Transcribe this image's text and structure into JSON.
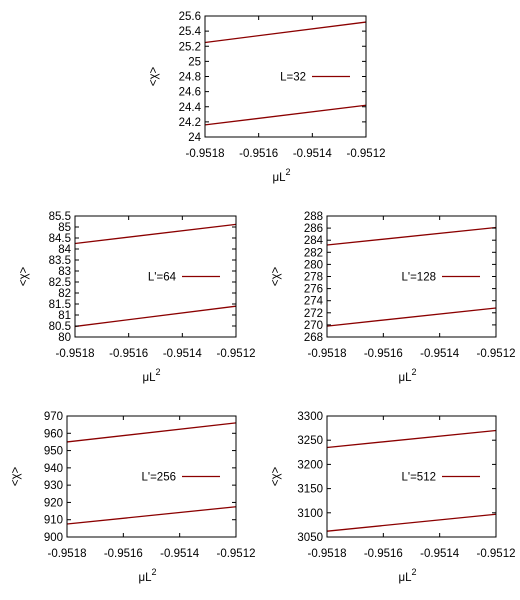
{
  "chart_data": [
    {
      "type": "line",
      "ylabel": "<χ>",
      "xlabel": "μL",
      "xlabel_sup": "2",
      "xlim": [
        -0.9518,
        -0.9512
      ],
      "xticks": [
        "-0.9518",
        "-0.9516",
        "-0.9514",
        "-0.9512"
      ],
      "ylim": [
        24,
        25.6
      ],
      "yticks": [
        "24",
        "24.2",
        "24.4",
        "24.6",
        "24.8",
        "25",
        "25.2",
        "25.4",
        "25.6"
      ],
      "legend": "L=32",
      "legend_position": "right",
      "line_color": "#8b0000",
      "series": [
        {
          "x": [
            -0.9518,
            -0.9512
          ],
          "y": [
            24.16,
            24.42
          ]
        },
        {
          "x": [
            -0.9518,
            -0.9512
          ],
          "y": [
            25.25,
            25.52
          ]
        }
      ]
    },
    {
      "type": "line",
      "ylabel": "<χ>",
      "xlabel": "μL",
      "xlabel_sup": "2",
      "xlim": [
        -0.9518,
        -0.9512
      ],
      "xticks": [
        "-0.9518",
        "-0.9516",
        "-0.9514",
        "-0.9512"
      ],
      "ylim": [
        80,
        85.5
      ],
      "yticks": [
        "80",
        "80.5",
        "81",
        "81.5",
        "82",
        "82.5",
        "83",
        "83.5",
        "84",
        "84.5",
        "85",
        "85.5"
      ],
      "legend": "L'=64",
      "legend_position": "right",
      "line_color": "#8b0000",
      "series": [
        {
          "x": [
            -0.9518,
            -0.9512
          ],
          "y": [
            80.48,
            81.4
          ]
        },
        {
          "x": [
            -0.9518,
            -0.9512
          ],
          "y": [
            84.25,
            85.12
          ]
        }
      ]
    },
    {
      "type": "line",
      "ylabel": "<χ>",
      "xlabel": "μL",
      "xlabel_sup": "2",
      "xlim": [
        -0.9518,
        -0.9512
      ],
      "xticks": [
        "-0.9518",
        "-0.9516",
        "-0.9514",
        "-0.9512"
      ],
      "ylim": [
        268,
        288
      ],
      "yticks": [
        "268",
        "270",
        "272",
        "274",
        "276",
        "278",
        "280",
        "282",
        "284",
        "286",
        "288"
      ],
      "legend": "L'=128",
      "legend_position": "right",
      "line_color": "#8b0000",
      "series": [
        {
          "x": [
            -0.9518,
            -0.9512
          ],
          "y": [
            269.8,
            272.8
          ]
        },
        {
          "x": [
            -0.9518,
            -0.9512
          ],
          "y": [
            283.2,
            286.1
          ]
        }
      ]
    },
    {
      "type": "line",
      "ylabel": "<χ>",
      "xlabel": "μL",
      "xlabel_sup": "2",
      "xlim": [
        -0.9518,
        -0.9512
      ],
      "xticks": [
        "-0.9518",
        "-0.9516",
        "-0.9514",
        "-0.9512"
      ],
      "ylim": [
        900,
        970
      ],
      "yticks": [
        "900",
        "910",
        "920",
        "930",
        "940",
        "950",
        "960",
        "970"
      ],
      "legend": "L'=256",
      "legend_position": "right",
      "line_color": "#8b0000",
      "series": [
        {
          "x": [
            -0.9518,
            -0.9512
          ],
          "y": [
            907.5,
            917.5
          ]
        },
        {
          "x": [
            -0.9518,
            -0.9512
          ],
          "y": [
            955.0,
            966.0
          ]
        }
      ]
    },
    {
      "type": "line",
      "ylabel": "<χ>",
      "xlabel": "μL",
      "xlabel_sup": "2",
      "xlim": [
        -0.9518,
        -0.9512
      ],
      "xticks": [
        "-0.9518",
        "-0.9516",
        "-0.9514",
        "-0.9512"
      ],
      "ylim": [
        3050,
        3300
      ],
      "yticks": [
        "3050",
        "3100",
        "3150",
        "3200",
        "3250",
        "3300"
      ],
      "legend": "L'=512",
      "legend_position": "right",
      "line_color": "#8b0000",
      "series": [
        {
          "x": [
            -0.9518,
            -0.9512
          ],
          "y": [
            3062,
            3097
          ]
        },
        {
          "x": [
            -0.9518,
            -0.9512
          ],
          "y": [
            3235,
            3270
          ]
        }
      ]
    }
  ]
}
